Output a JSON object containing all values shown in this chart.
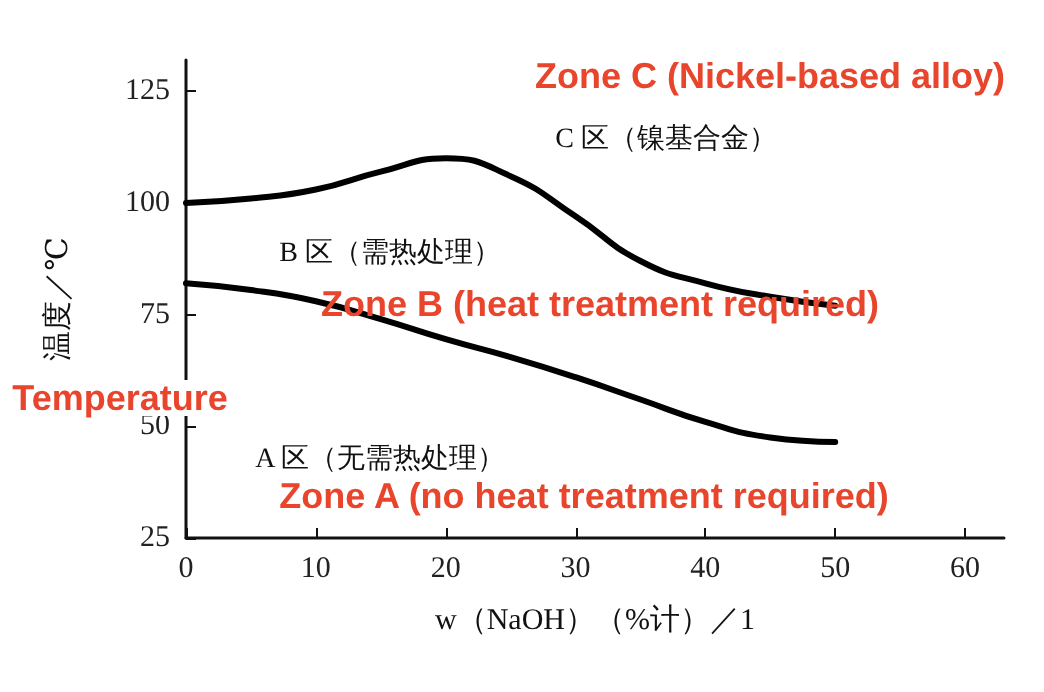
{
  "chart_data": {
    "type": "line",
    "xlabel": "w（NaOH）（%计）／1",
    "ylabel": "温度／℃",
    "xlim": [
      0,
      63
    ],
    "ylim": [
      25,
      132
    ],
    "xticks": [
      0,
      10,
      20,
      30,
      40,
      50,
      60
    ],
    "yticks": [
      25,
      50,
      75,
      100,
      125
    ],
    "grid": false,
    "marker": "none",
    "line_style": "solid",
    "series": [
      {
        "color": "#000000",
        "x": [
          0,
          5,
          10,
          15,
          20,
          25,
          30,
          35,
          40,
          45,
          50
        ],
        "values": [
          100,
          101,
          103,
          107,
          110,
          106,
          97,
          87,
          82,
          79,
          77
        ]
      },
      {
        "color": "#000000",
        "x": [
          0,
          5,
          10,
          15,
          20,
          25,
          30,
          35,
          40,
          45,
          50
        ],
        "values": [
          82,
          80.5,
          78,
          74,
          69.5,
          65.5,
          61,
          56,
          51,
          47.5,
          46.5
        ]
      }
    ],
    "annotations": [
      "C 区（镍基合金）",
      "B 区（需热处理）",
      "A 区（无需热处理）",
      "Zone C (Nickel-based alloy)",
      "Zone B (heat treatment required)",
      "Zone A (no heat treatment required)",
      "Temperature"
    ]
  }
}
